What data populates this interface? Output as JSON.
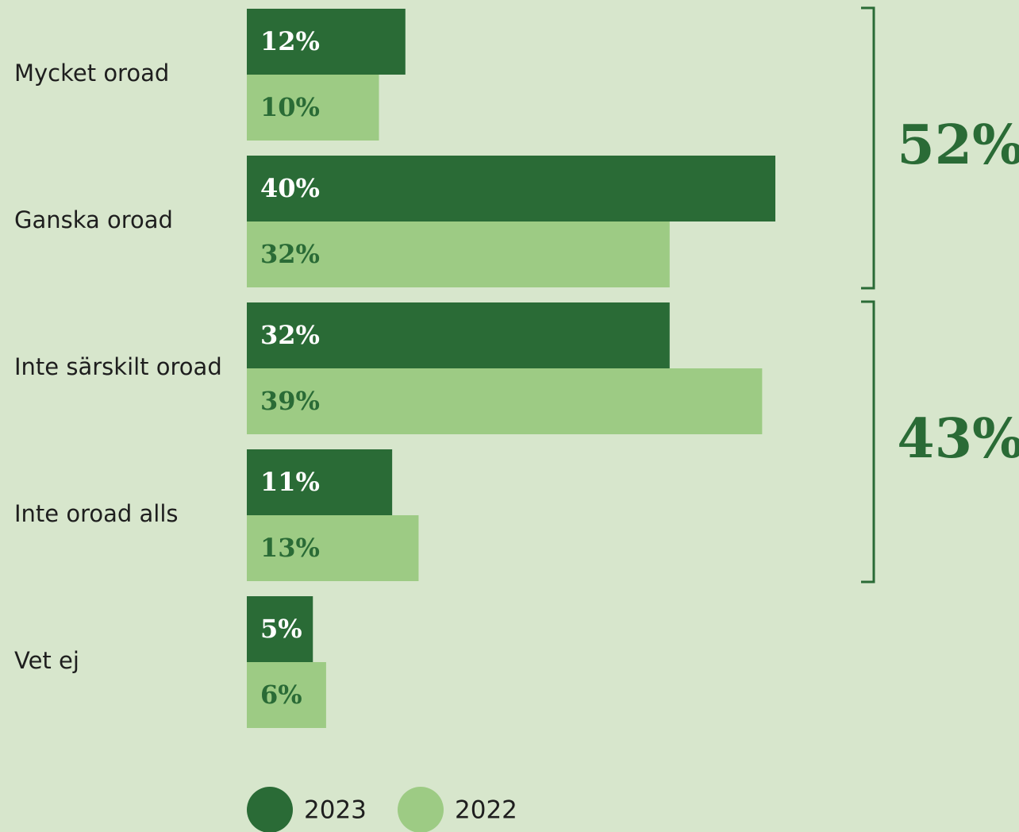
{
  "chart_data": {
    "type": "bar",
    "orientation": "horizontal",
    "categories": [
      "Mycket oroad",
      "Ganska oroad",
      "Inte särskilt oroad",
      "Inte oroad alls",
      "Vet ej"
    ],
    "series": [
      {
        "name": "2023",
        "values": [
          12,
          40,
          32,
          11,
          5
        ],
        "labels": [
          "12%",
          "40%",
          "32%",
          "11%",
          "5%"
        ],
        "color": "#2a6b36",
        "label_color": "#ffffff"
      },
      {
        "name": "2022",
        "values": [
          10,
          32,
          39,
          13,
          6
        ],
        "labels": [
          "10%",
          "32%",
          "39%",
          "13%",
          "6%"
        ],
        "color": "#9dcb84",
        "label_color": "#2a6b36"
      }
    ],
    "groups": [
      {
        "label": "52%",
        "categories": [
          "Mycket oroad",
          "Ganska oroad"
        ]
      },
      {
        "label": "43%",
        "categories": [
          "Inte särskilt oroad",
          "Inte oroad alls"
        ]
      }
    ],
    "xlim": [
      0,
      40
    ],
    "grid": false,
    "legend": "bottom",
    "title": "",
    "xlabel": "",
    "ylabel": ""
  },
  "colors": {
    "background": "#d7e6cc",
    "accent": "#2a6b36",
    "light": "#9dcb84",
    "text": "#1e1e1e"
  }
}
